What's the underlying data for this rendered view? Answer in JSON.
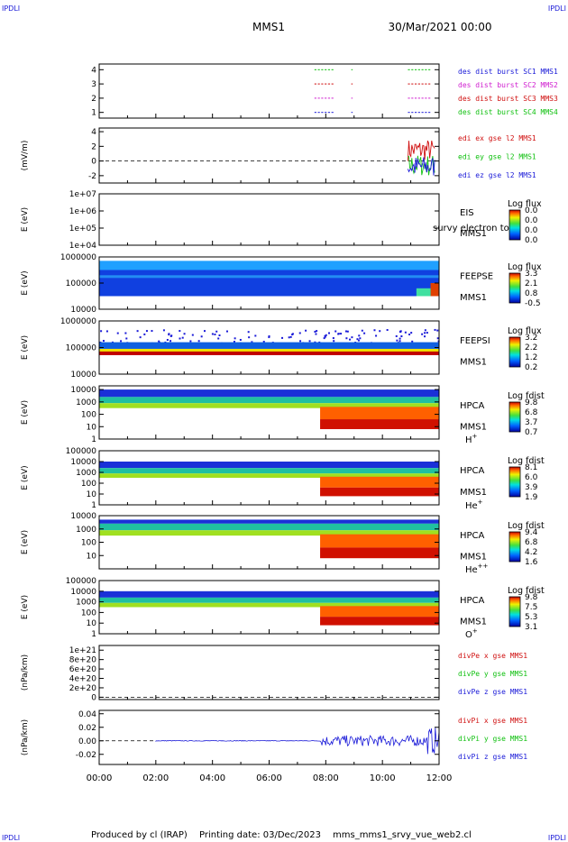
{
  "corner_label": "IPDLI",
  "header": {
    "mission": "MMS1",
    "datetime": "30/Mar/2021 00:00"
  },
  "footer": {
    "producer": "Produced by cl (IRAP)",
    "printing": "Printing date: 03/Dec/2023",
    "file": "mms_mms1_srvy_vue_web2.cl"
  },
  "colors": {
    "blue": "#1a1ad8",
    "magenta": "#d020d0",
    "red": "#d01010",
    "green": "#10c010"
  },
  "chart_data": {
    "type": "multi-panel",
    "x_ticks": [
      "00:00",
      "02:00",
      "04:00",
      "06:00",
      "08:00",
      "10:00",
      "12:00"
    ],
    "x_range_hours": [
      0,
      12
    ],
    "panels": [
      {
        "id": "burst",
        "ylabel": "",
        "ticks": [
          "4",
          "3",
          "2",
          "1"
        ],
        "tick_values": [
          4,
          3,
          2,
          1
        ],
        "ylim": [
          0.6,
          4.4
        ],
        "legend": [
          {
            "text": "des dist burst SC1 MMS1",
            "color": "#1a1ad8"
          },
          {
            "text": "des dist burst SC2 MMS2",
            "color": "#d020d0"
          },
          {
            "text": "des dist burst SC3 MMS3",
            "color": "#d01010"
          },
          {
            "text": "des dist burst SC4 MMS4",
            "color": "#10c010"
          }
        ],
        "segments": [
          {
            "level": 4,
            "color": "#10c010",
            "intervals": [
              [
                7.6,
                8.3
              ],
              [
                8.9,
                8.95
              ],
              [
                10.9,
                11.7
              ]
            ]
          },
          {
            "level": 3,
            "color": "#d01010",
            "intervals": [
              [
                7.6,
                8.3
              ],
              [
                8.9,
                8.95
              ],
              [
                10.9,
                11.7
              ]
            ]
          },
          {
            "level": 2,
            "color": "#d020d0",
            "intervals": [
              [
                7.6,
                8.3
              ],
              [
                8.9,
                8.95
              ],
              [
                10.9,
                11.7
              ]
            ]
          },
          {
            "level": 1,
            "color": "#1a1ad8",
            "intervals": [
              [
                7.6,
                8.3
              ],
              [
                8.9,
                8.95
              ],
              [
                10.9,
                11.7
              ]
            ]
          }
        ]
      },
      {
        "id": "edi",
        "ylabel": "(mV/m)",
        "ticks": [
          "4",
          "2",
          "0",
          "-2"
        ],
        "tick_values": [
          4,
          2,
          0,
          -2
        ],
        "ylim": [
          -3,
          4.5
        ],
        "legend": [
          {
            "text": "edi ex gse l2 MMS1",
            "color": "#d01010"
          },
          {
            "text": "edi ey gse l2 MMS1",
            "color": "#10c010"
          },
          {
            "text": "edi ez gse l2 MMS1",
            "color": "#1a1ad8"
          }
        ]
      },
      {
        "id": "eis",
        "ylabel": "E (eV)",
        "ticks": [
          "1e+07",
          "1e+06",
          "1e+05",
          "1e+04"
        ],
        "tick_values": [
          7,
          6,
          5,
          4
        ],
        "ylim": [
          4,
          7
        ],
        "instrument": [
          "EIS",
          "MMS1"
        ],
        "overlay": "survy electron to",
        "colorbar": {
          "title": "Log flux",
          "labels": [
            "0.0",
            "0.0",
            "0.0",
            "0.0"
          ]
        }
      },
      {
        "id": "feeps_e",
        "ylabel": "E (eV)",
        "ticks": [
          "1000000",
          "100000",
          "10000"
        ],
        "tick_values": [
          6,
          5,
          4
        ],
        "ylim": [
          4,
          6
        ],
        "instrument": [
          "FEEPSE",
          "MMS1"
        ],
        "colorbar": {
          "title": "Log flux",
          "labels": [
            "3.3",
            "2.1",
            "0.8",
            "-0.5"
          ]
        }
      },
      {
        "id": "feeps_i",
        "ylabel": "E (eV)",
        "ticks": [
          "1000000",
          "100000",
          "10000"
        ],
        "tick_values": [
          6,
          5,
          4
        ],
        "ylim": [
          4,
          6
        ],
        "instrument": [
          "FEEPSI",
          "MMS1"
        ],
        "colorbar": {
          "title": "Log flux",
          "labels": [
            "3.2",
            "2.2",
            "1.2",
            "0.2"
          ]
        }
      },
      {
        "id": "hpca_h",
        "ylabel": "E (eV)",
        "ticks": [
          "10000",
          "1000",
          "100",
          "10",
          "1"
        ],
        "tick_values": [
          4,
          3,
          2,
          1,
          0
        ],
        "ylim": [
          0,
          4.3
        ],
        "instrument": [
          "HPCA",
          "MMS1"
        ],
        "species": "H",
        "charge": "+",
        "colorbar": {
          "title": "Log fdist",
          "labels": [
            "9.8",
            "6.8",
            "3.7",
            "0.7"
          ]
        }
      },
      {
        "id": "hpca_he1",
        "ylabel": "E (eV)",
        "ticks": [
          "100000",
          "10000",
          "1000",
          "100",
          "10",
          "1"
        ],
        "tick_values": [
          5,
          4,
          3,
          2,
          1,
          0
        ],
        "ylim": [
          0,
          5
        ],
        "instrument": [
          "HPCA",
          "MMS1"
        ],
        "species": "He",
        "charge": "+",
        "colorbar": {
          "title": "Log fdist",
          "labels": [
            "8.1",
            "6.0",
            "3.9",
            "1.9"
          ]
        }
      },
      {
        "id": "hpca_he2",
        "ylabel": "E (eV)",
        "ticks": [
          "10000",
          "1000",
          "100",
          "10"
        ],
        "tick_values": [
          4,
          3,
          2,
          1
        ],
        "ylim": [
          0,
          4
        ],
        "instrument": [
          "HPCA",
          "MMS1"
        ],
        "species": "He",
        "charge": "++",
        "colorbar": {
          "title": "Log fdist",
          "labels": [
            "9.4",
            "6.8",
            "4.2",
            "1.6"
          ]
        }
      },
      {
        "id": "hpca_o",
        "ylabel": "E (eV)",
        "ticks": [
          "100000",
          "10000",
          "1000",
          "100",
          "10",
          "1"
        ],
        "tick_values": [
          5,
          4,
          3,
          2,
          1,
          0
        ],
        "ylim": [
          0,
          5
        ],
        "instrument": [
          "HPCA",
          "MMS1"
        ],
        "species": "O",
        "charge": "+",
        "colorbar": {
          "title": "Log fdist",
          "labels": [
            "9.8",
            "7.5",
            "5.3",
            "3.1"
          ]
        }
      },
      {
        "id": "divpe",
        "ylabel": "(nPa/km)",
        "ticks": [
          "1e+21",
          "8e+20",
          "6e+20",
          "4e+20",
          "2e+20",
          "0"
        ],
        "tick_values": [
          1.0,
          0.8,
          0.6,
          0.4,
          0.2,
          0
        ],
        "ylim": [
          -0.05,
          1.1
        ],
        "legend": [
          {
            "text": "divPe x gse MMS1",
            "color": "#d01010"
          },
          {
            "text": "divPe y gse MMS1",
            "color": "#10c010"
          },
          {
            "text": "divPe z gse MMS1",
            "color": "#1a1ad8"
          }
        ]
      },
      {
        "id": "divpi",
        "ylabel": "(nPa/km)",
        "ticks": [
          "0.04",
          "0.02",
          "0.00",
          "-0.02"
        ],
        "tick_values": [
          0.04,
          0.02,
          0.0,
          -0.02
        ],
        "ylim": [
          -0.035,
          0.045
        ],
        "legend": [
          {
            "text": "divPi x gse MMS1",
            "color": "#d01010"
          },
          {
            "text": "divPi y gse MMS1",
            "color": "#10c010"
          },
          {
            "text": "divPi z gse MMS1",
            "color": "#1a1ad8"
          }
        ]
      }
    ]
  }
}
